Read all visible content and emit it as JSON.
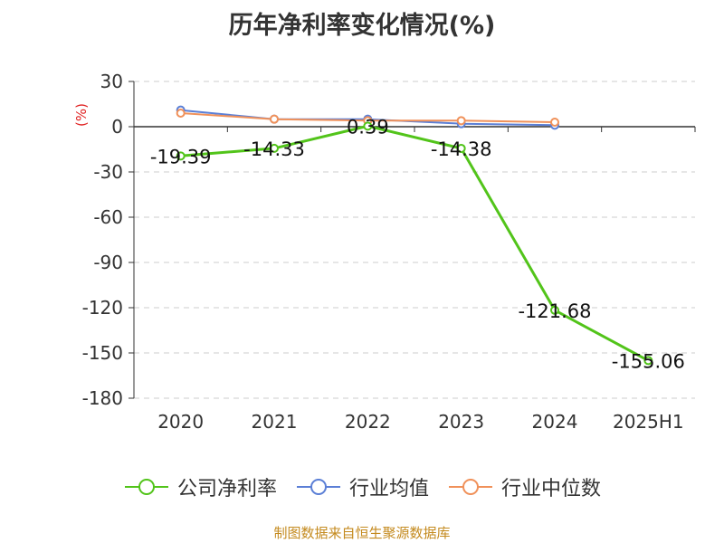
{
  "chart_data": {
    "type": "line",
    "title": "历年净利率变化情况(%)",
    "ylabel": "(%)",
    "categories": [
      "2020",
      "2021",
      "2022",
      "2023",
      "2024",
      "2025H1"
    ],
    "ylim": [
      -180,
      30
    ],
    "yticks": [
      30,
      0,
      -30,
      -60,
      -90,
      -120,
      -150,
      -180
    ],
    "grid": true,
    "legend_position": "bottom",
    "series": [
      {
        "name": "公司净利率",
        "color": "#52c41a",
        "values": [
          -19.39,
          -14.33,
          0.39,
          -14.38,
          -121.68,
          -155.06
        ],
        "labels": [
          "-19.39",
          "-14.33",
          "0.39",
          "-14.38",
          "-121.68",
          "-155.06"
        ]
      },
      {
        "name": "行业均值",
        "color": "#5b7fd6",
        "values": [
          11,
          5,
          5,
          2,
          1,
          null
        ]
      },
      {
        "name": "行业中位数",
        "color": "#f0915a",
        "values": [
          9,
          5,
          4,
          4,
          3,
          null
        ]
      }
    ]
  },
  "footer": {
    "source": "制图数据来自恒生聚源数据库"
  }
}
